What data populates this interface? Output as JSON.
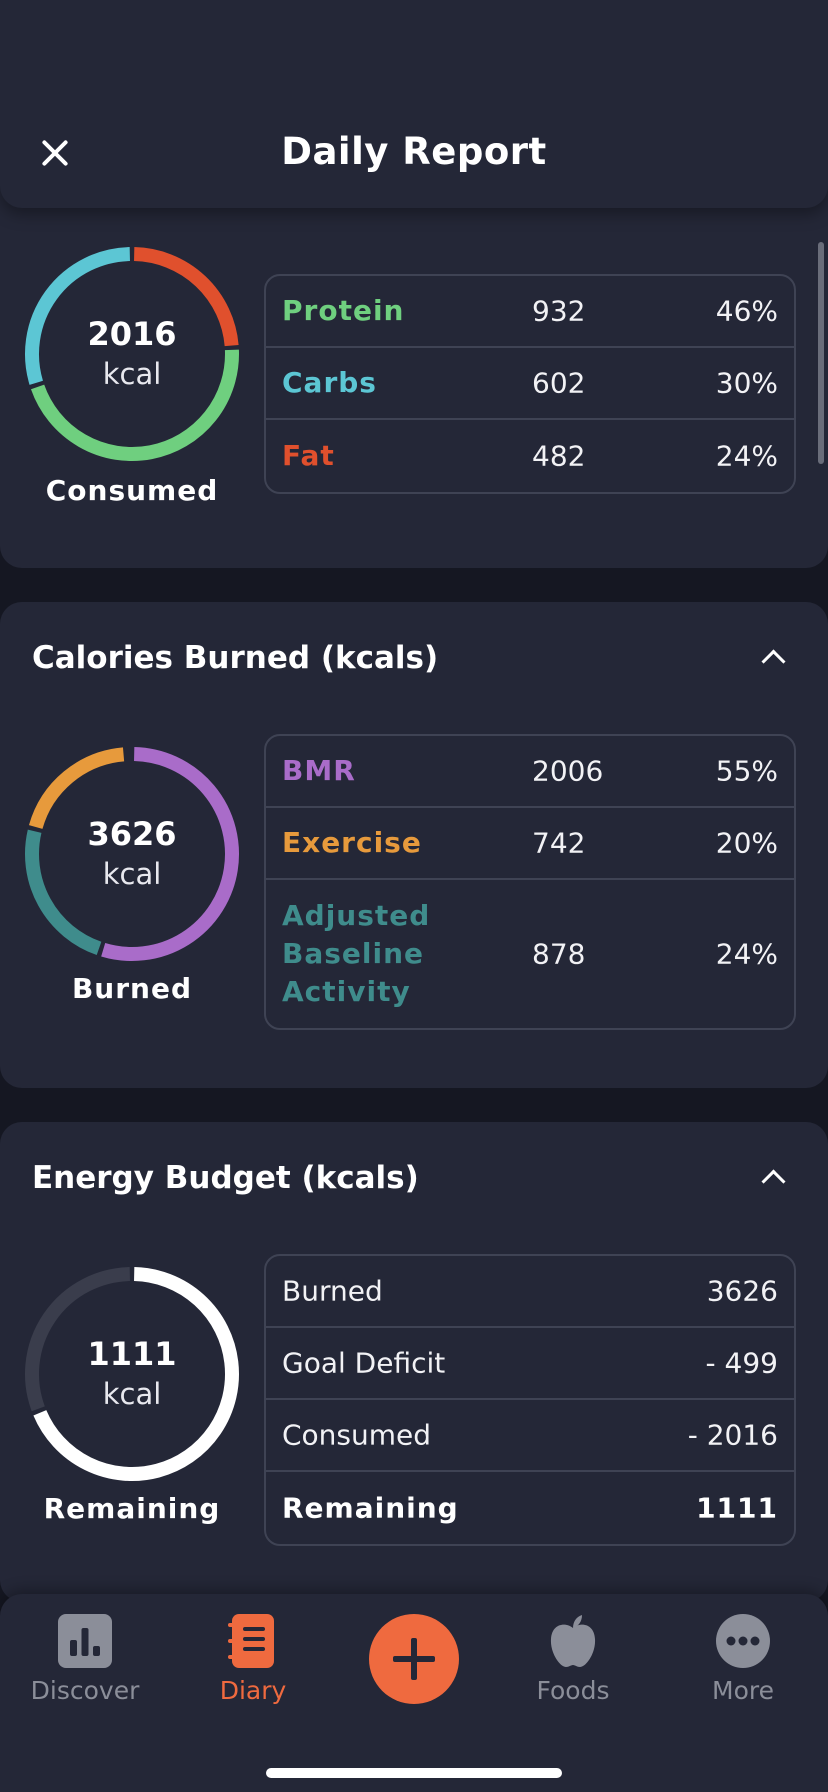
{
  "header": {
    "title": "Daily Report"
  },
  "consumed": {
    "total": "2016",
    "unit": "kcal",
    "caption": "Consumed",
    "rows": [
      {
        "name": "Protein",
        "value": "932",
        "pct": "46%",
        "color": "#6fcf7f",
        "fraction": 0.46
      },
      {
        "name": "Carbs",
        "value": "602",
        "pct": "30%",
        "color": "#5cc6d4",
        "fraction": 0.3
      },
      {
        "name": "Fat",
        "value": "482",
        "pct": "24%",
        "color": "#e0502d",
        "fraction": 0.24
      }
    ]
  },
  "burned": {
    "title": "Calories Burned (kcals)",
    "total": "3626",
    "unit": "kcal",
    "caption": "Burned",
    "rows": [
      {
        "name": "BMR",
        "value": "2006",
        "pct": "55%",
        "color": "#a96cc9",
        "fraction": 0.55
      },
      {
        "name": "Exercise",
        "value": "742",
        "pct": "20%",
        "color": "#e79a3c",
        "fraction": 0.2
      },
      {
        "name": "Adjusted Baseline Activity",
        "value": "878",
        "pct": "24%",
        "color": "#3f8c8c",
        "fraction": 0.24
      }
    ]
  },
  "budget": {
    "title": "Energy Budget (kcals)",
    "total": "1111",
    "unit": "kcal",
    "caption": "Remaining",
    "remaining_fraction": 0.69,
    "rows": [
      {
        "label": "Burned",
        "value": "3626"
      },
      {
        "label": "Goal Deficit",
        "value": "- 499"
      },
      {
        "label": "Consumed",
        "value": "- 2016"
      },
      {
        "label": "Remaining",
        "value": "1111"
      }
    ]
  },
  "tabbar": {
    "discover": {
      "label": "Discover",
      "icon": "bar-chart-icon"
    },
    "diary": {
      "label": "Diary",
      "icon": "notebook-icon"
    },
    "add": {
      "icon": "plus-icon"
    },
    "foods": {
      "label": "Foods",
      "icon": "apple-icon"
    },
    "more": {
      "label": "More",
      "icon": "ellipsis-icon"
    }
  },
  "colors": {
    "accent": "#ef6a3f",
    "card": "#242737",
    "background": "#151722",
    "remaining": "#ffffff",
    "track": "#3a3d4c"
  }
}
